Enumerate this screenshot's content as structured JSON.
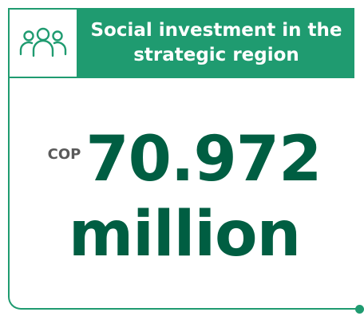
{
  "header": {
    "icon": "people-group-icon",
    "title": "Social investment in the strategic region"
  },
  "value": {
    "currency": "COP",
    "amount": "70.972",
    "unit": "million"
  },
  "colors": {
    "accent": "#1f9b70",
    "value_text": "#005e42",
    "currency_text": "#5a5a5a",
    "header_text": "#ffffff"
  }
}
